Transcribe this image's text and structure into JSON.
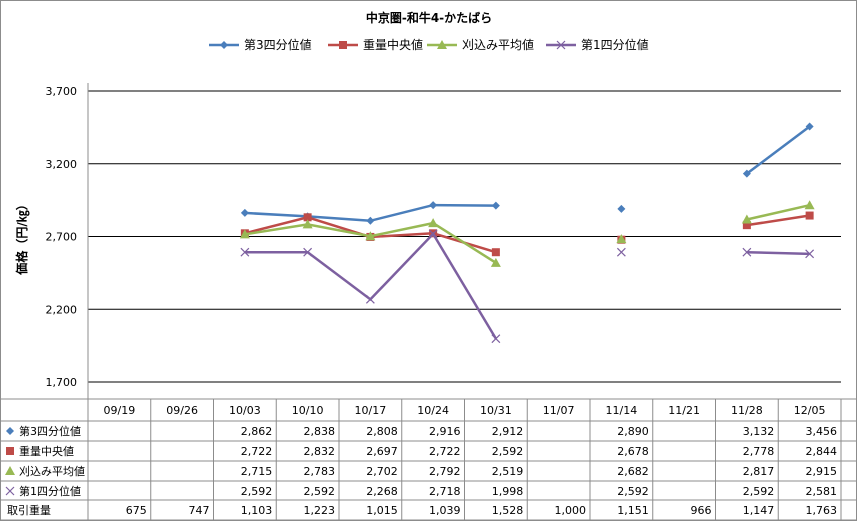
{
  "chart_data": {
    "type": "line",
    "title": "中京圏-和牛4-かたばら",
    "ylabel": "価格（円/㎏）",
    "ylim": [
      1700,
      3700
    ],
    "yticks": [
      "1,700",
      "2,200",
      "2,700",
      "3,200",
      "3,700"
    ],
    "ytick_values": [
      1700,
      2200,
      2700,
      3200,
      3700
    ],
    "grid": true,
    "legend_position": "top",
    "categories": [
      "09/19",
      "09/26",
      "10/03",
      "10/10",
      "10/17",
      "10/24",
      "10/31",
      "11/07",
      "11/14",
      "11/21",
      "11/28",
      "12/05"
    ],
    "series": [
      {
        "name": "第3四分位値",
        "color": "#4a7ebb",
        "marker": "diamond",
        "values": [
          null,
          null,
          2862,
          2838,
          2808,
          2916,
          2912,
          null,
          2890,
          null,
          3132,
          3456
        ],
        "labels": [
          "",
          "",
          "2,862",
          "2,838",
          "2,808",
          "2,916",
          "2,912",
          "",
          "2,890",
          "",
          "3,132",
          "3,456"
        ]
      },
      {
        "name": "重量中央値",
        "color": "#be4b48",
        "marker": "square",
        "values": [
          null,
          null,
          2722,
          2832,
          2697,
          2722,
          2592,
          null,
          2678,
          null,
          2778,
          2844
        ],
        "labels": [
          "",
          "",
          "2,722",
          "2,832",
          "2,697",
          "2,722",
          "2,592",
          "",
          "2,678",
          "",
          "2,778",
          "2,844"
        ]
      },
      {
        "name": "刈込み平均値",
        "color": "#98b954",
        "marker": "triangle",
        "values": [
          null,
          null,
          2715,
          2783,
          2702,
          2792,
          2519,
          null,
          2682,
          null,
          2817,
          2915
        ],
        "labels": [
          "",
          "",
          "2,715",
          "2,783",
          "2,702",
          "2,792",
          "2,519",
          "",
          "2,682",
          "",
          "2,817",
          "2,915"
        ]
      },
      {
        "name": "第1四分位値",
        "color": "#7d60a0",
        "marker": "x",
        "values": [
          null,
          null,
          2592,
          2592,
          2268,
          2718,
          1998,
          null,
          2592,
          null,
          2592,
          2581
        ],
        "labels": [
          "",
          "",
          "2,592",
          "2,592",
          "2,268",
          "2,718",
          "1,998",
          "",
          "2,592",
          "",
          "2,592",
          "2,581"
        ]
      }
    ],
    "volume_row": {
      "name": "取引重量",
      "values": [
        675,
        747,
        1103,
        1223,
        1015,
        1039,
        1528,
        1000,
        1151,
        966,
        1147,
        1763
      ],
      "labels": [
        "675",
        "747",
        "1,103",
        "1,223",
        "1,015",
        "1,039",
        "1,528",
        "1,000",
        "1,151",
        "966",
        "1,147",
        "1,763"
      ]
    }
  }
}
